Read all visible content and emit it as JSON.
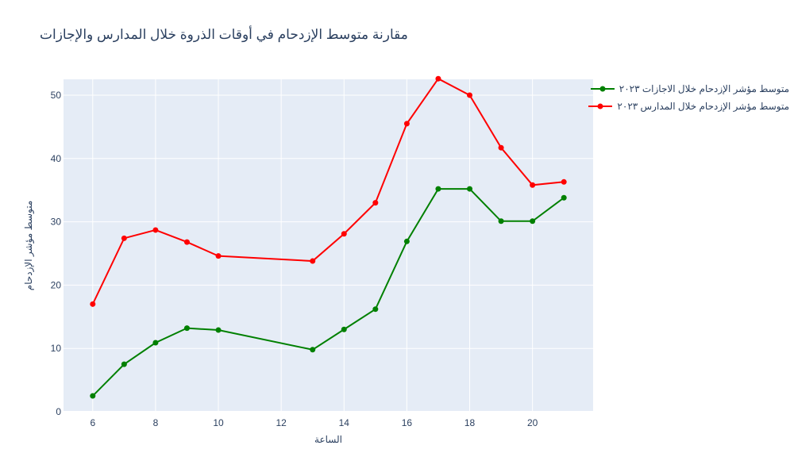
{
  "chart_data": {
    "type": "line",
    "title": "مقارنة متوسط الإزدحام في أوقات الذروة خلال المدارس والإجازات",
    "xlabel": "الساعة",
    "ylabel": "متوسط مؤشر الإزدحام",
    "xlim": [
      5.07,
      21.93
    ],
    "ylim": [
      0,
      52.5
    ],
    "xticks": [
      6,
      8,
      10,
      12,
      14,
      16,
      18,
      20
    ],
    "yticks": [
      0,
      10,
      20,
      30,
      40,
      50
    ],
    "grid": true,
    "legend_position": "top-right",
    "x": [
      6,
      7,
      8,
      9,
      10,
      13,
      14,
      15,
      16,
      17,
      18,
      19,
      20,
      21
    ],
    "series": [
      {
        "name": "متوسط مؤشر الإزدحام خلال الاجازات ٢٠٢٣",
        "color": "#008000",
        "values": [
          2.5,
          7.5,
          10.9,
          13.2,
          12.9,
          9.8,
          13.0,
          16.2,
          26.9,
          35.2,
          35.2,
          30.1,
          30.1,
          33.8
        ]
      },
      {
        "name": "متوسط مؤشر الإزدحام خلال المدارس ٢٠٢٣",
        "color": "#ff0000",
        "values": [
          17.0,
          27.4,
          28.7,
          26.8,
          24.6,
          23.8,
          28.1,
          33.0,
          45.5,
          52.6,
          50.0,
          41.7,
          35.8,
          36.3
        ]
      }
    ]
  }
}
